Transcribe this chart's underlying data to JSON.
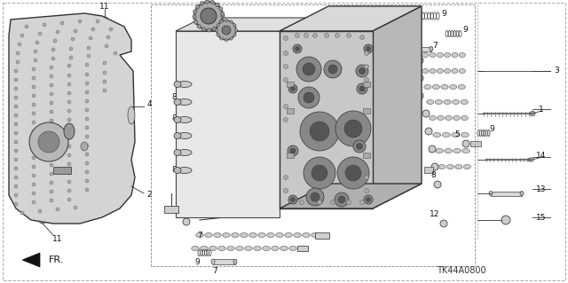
{
  "background_color": "#ffffff",
  "diagram_code": "TK44A0800",
  "fig_width": 6.4,
  "fig_height": 3.19,
  "dpi": 100,
  "main_color": "#222222",
  "plate_color": "#d0d0d0",
  "body_color": "#c0c0c0",
  "body_dark": "#a0a0a0",
  "pin_color": "#b8b8b8",
  "light": "#e8e8e8"
}
